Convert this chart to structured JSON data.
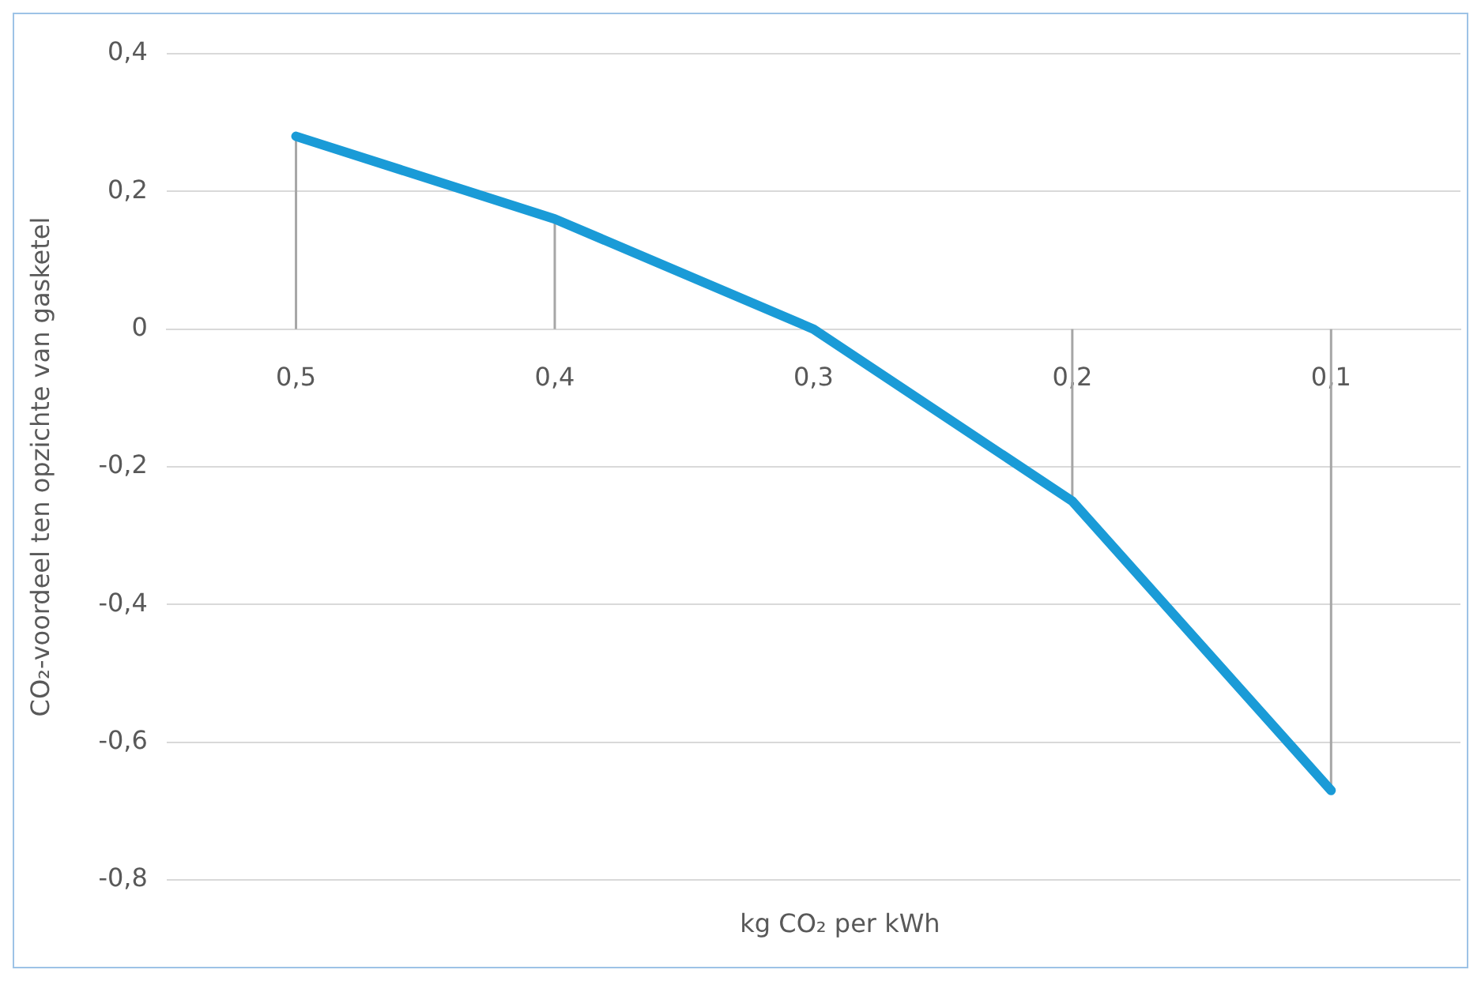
{
  "chart_data": {
    "type": "line",
    "xlabel": "kg CO₂ per kWh",
    "ylabel": "CO₂-voordeel ten opzichte van gasketel",
    "categories": [
      "0,5",
      "0,4",
      "0,3",
      "0,2",
      "0,1"
    ],
    "series": [
      {
        "color": "#1a9bd7",
        "values": [
          0.28,
          0.16,
          0,
          -0.25,
          -0.67
        ],
        "errors": [
          [
            0,
            0.28
          ],
          [
            0,
            0.16
          ],
          null,
          [
            -0.25,
            0
          ],
          [
            -0.67,
            0
          ]
        ]
      }
    ],
    "ylim": [
      -0.8,
      0.4
    ],
    "yticks": [
      {
        "value": 0.4,
        "label": "0,4"
      },
      {
        "value": 0.2,
        "label": "0,2"
      },
      {
        "value": 0,
        "label": "0"
      },
      {
        "value": -0.2,
        "label": "-0,2"
      },
      {
        "value": -0.4,
        "label": "-0,4"
      },
      {
        "value": -0.6,
        "label": "-0,6"
      },
      {
        "value": -0.8,
        "label": "-0,8"
      }
    ],
    "grid": "y",
    "legend": false
  }
}
